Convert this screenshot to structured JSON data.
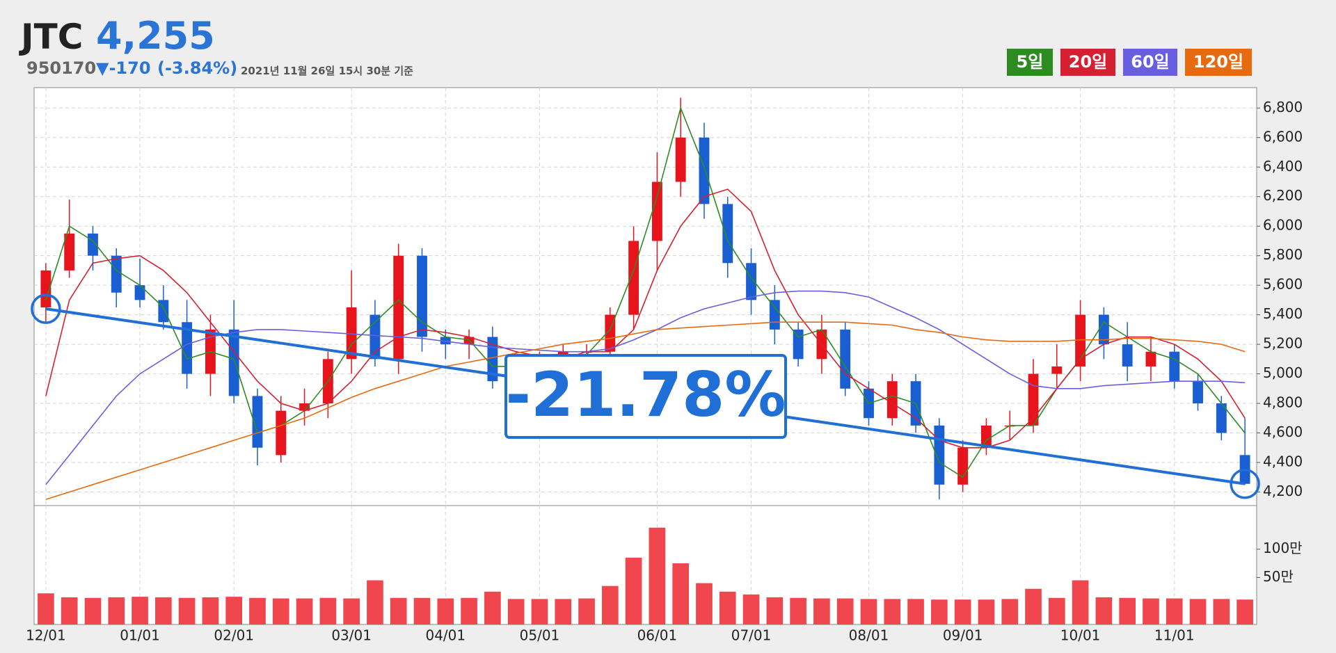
{
  "header": {
    "name": "JTC",
    "price": "4,255",
    "code": "950170",
    "change": "▼-170",
    "change_pct": "(-3.84%)",
    "timestamp": "2021년 11월 26일 15시 30분 기준"
  },
  "chart_data": {
    "type": "candlestick",
    "categories": [
      "12/01",
      null,
      null,
      null,
      "01/01",
      null,
      null,
      null,
      "02/01",
      null,
      null,
      null,
      null,
      "03/01",
      null,
      null,
      null,
      "04/01",
      null,
      null,
      null,
      "05/01",
      null,
      null,
      null,
      null,
      "06/01",
      null,
      null,
      null,
      "07/01",
      null,
      null,
      null,
      null,
      "08/01",
      null,
      null,
      null,
      "09/01",
      null,
      null,
      null,
      null,
      "10/01",
      null,
      null,
      null,
      "11/01",
      null,
      null,
      null
    ],
    "open": [
      5450,
      5700,
      5950,
      5800,
      5600,
      5500,
      5350,
      5000,
      5300,
      4850,
      4450,
      4750,
      4800,
      5100,
      5400,
      5100,
      5800,
      5250,
      5200,
      5250,
      4950,
      5100,
      5100,
      5150,
      5150,
      5400,
      5900,
      6300,
      6600,
      6150,
      5750,
      5500,
      5300,
      5100,
      5300,
      4900,
      4700,
      4950,
      4650,
      4250,
      4500,
      4650,
      4650,
      5000,
      5050,
      5400,
      5200,
      5050,
      5150,
      4950,
      4800,
      4450
    ],
    "high": [
      5750,
      6180,
      6000,
      5850,
      5780,
      5600,
      5500,
      5400,
      5500,
      4900,
      4850,
      4900,
      5150,
      5700,
      5500,
      5880,
      5850,
      5300,
      5300,
      5320,
      5150,
      5150,
      5200,
      5200,
      5450,
      6000,
      6500,
      6870,
      6700,
      6200,
      5850,
      5600,
      5350,
      5400,
      5350,
      4950,
      5000,
      5000,
      4700,
      4550,
      4700,
      4750,
      5100,
      5200,
      5500,
      5450,
      5350,
      5250,
      5200,
      5000,
      4850,
      4700
    ],
    "low": [
      5350,
      5650,
      5700,
      5450,
      5450,
      5300,
      4900,
      4850,
      4800,
      4380,
      4400,
      4650,
      4700,
      5000,
      5050,
      5000,
      5150,
      5100,
      5100,
      4900,
      4900,
      5000,
      5000,
      5050,
      5050,
      5300,
      5700,
      6200,
      6050,
      5650,
      5400,
      5200,
      5050,
      5000,
      4850,
      4650,
      4650,
      4600,
      4150,
      4200,
      4450,
      4550,
      4600,
      4900,
      4950,
      5100,
      4950,
      4950,
      4900,
      4750,
      4550,
      4250
    ],
    "close": [
      5700,
      5950,
      5800,
      5550,
      5500,
      5350,
      5000,
      5300,
      4850,
      4500,
      4750,
      4800,
      5100,
      5450,
      5100,
      5800,
      5250,
      5200,
      5250,
      4950,
      5100,
      5100,
      5150,
      5150,
      5400,
      5900,
      6300,
      6600,
      6150,
      5750,
      5500,
      5300,
      5100,
      5300,
      4900,
      4700,
      4950,
      4650,
      4250,
      4500,
      4650,
      4650,
      5000,
      5050,
      5400,
      5200,
      5050,
      5150,
      4950,
      4800,
      4600,
      4255
    ],
    "up_color": "#e8141c",
    "down_color": "#1a5fd1",
    "series": [
      {
        "name": "5일",
        "color": "#2e8b22",
        "values": [
          5500,
          6000,
          5900,
          5700,
          5600,
          5450,
          5100,
          5150,
          5100,
          4600,
          4650,
          4750,
          4950,
          5200,
          5350,
          5500,
          5350,
          5250,
          5230,
          5050,
          5050,
          5100,
          5120,
          5130,
          5300,
          5700,
          6200,
          6800,
          6400,
          5900,
          5650,
          5450,
          5250,
          5300,
          5050,
          4800,
          4850,
          4800,
          4400,
          4300,
          4550,
          4650,
          4650,
          4900,
          5100,
          5350,
          5250,
          5150,
          5100,
          5000,
          4800,
          4600
        ]
      },
      {
        "name": "20일",
        "color": "#d42030",
        "values": [
          4850,
          5500,
          5750,
          5780,
          5800,
          5700,
          5550,
          5350,
          5150,
          4950,
          4800,
          4750,
          4800,
          4950,
          5150,
          5250,
          5300,
          5280,
          5250,
          5200,
          5150,
          5120,
          5100,
          5150,
          5150,
          5300,
          5700,
          6000,
          6200,
          6250,
          6100,
          5700,
          5400,
          5200,
          5000,
          4900,
          4800,
          4700,
          4550,
          4500,
          4500,
          4550,
          4700,
          4900,
          5100,
          5200,
          5250,
          5250,
          5200,
          5100,
          4950,
          4700
        ]
      },
      {
        "name": "60일",
        "color": "#6a5ee0",
        "values": [
          4250,
          4450,
          4650,
          4850,
          5000,
          5100,
          5200,
          5250,
          5280,
          5300,
          5300,
          5290,
          5280,
          5270,
          5260,
          5250,
          5240,
          5220,
          5200,
          5180,
          5170,
          5160,
          5150,
          5150,
          5170,
          5230,
          5300,
          5380,
          5440,
          5480,
          5520,
          5550,
          5560,
          5560,
          5550,
          5520,
          5450,
          5380,
          5300,
          5200,
          5100,
          5000,
          4920,
          4900,
          4900,
          4920,
          4930,
          4940,
          4950,
          4950,
          4950,
          4940
        ]
      },
      {
        "name": "120일",
        "color": "#e86a10",
        "values": [
          4150,
          4200,
          4250,
          4300,
          4350,
          4400,
          4450,
          4500,
          4550,
          4600,
          4650,
          4700,
          4770,
          4840,
          4900,
          4950,
          5000,
          5050,
          5080,
          5110,
          5140,
          5170,
          5200,
          5220,
          5240,
          5270,
          5300,
          5310,
          5320,
          5330,
          5340,
          5350,
          5350,
          5350,
          5350,
          5340,
          5330,
          5300,
          5280,
          5250,
          5230,
          5220,
          5220,
          5220,
          5230,
          5230,
          5240,
          5240,
          5230,
          5220,
          5200,
          5150
        ]
      }
    ],
    "legend": "top-right",
    "ylim": [
      4108,
      6938
    ],
    "yticks": [
      {
        "value": 4200,
        "label": "4,200"
      },
      {
        "value": 4400,
        "label": "4,400"
      },
      {
        "value": 4600,
        "label": "4,600"
      },
      {
        "value": 4800,
        "label": "4,800"
      },
      {
        "value": 5000,
        "label": "5,000"
      },
      {
        "value": 5200,
        "label": "5,200"
      },
      {
        "value": 5400,
        "label": "5,400"
      },
      {
        "value": 5600,
        "label": "5,600"
      },
      {
        "value": 5800,
        "label": "5,800"
      },
      {
        "value": 6000,
        "label": "6,000"
      },
      {
        "value": 6200,
        "label": "6,200"
      },
      {
        "value": 6400,
        "label": "6,400"
      },
      {
        "value": 6600,
        "label": "6,600"
      },
      {
        "value": 6800,
        "label": "6,800"
      }
    ],
    "grid": true,
    "trend_line": {
      "start": 5440,
      "end": 4255,
      "color": "#1f6fd6"
    },
    "annotation": "-21.78%",
    "volume": {
      "color": "#f0474f",
      "ylim": [
        -33,
        177
      ],
      "yticks": [
        {
          "value": 50,
          "label": "50만"
        },
        {
          "value": 100,
          "label": "100만"
        }
      ],
      "values": [
        22,
        15,
        14,
        15,
        16,
        15,
        14,
        15,
        16,
        14,
        13,
        13,
        14,
        13,
        45,
        14,
        14,
        13,
        14,
        25,
        12,
        12,
        12,
        13,
        35,
        85,
        138,
        75,
        40,
        25,
        20,
        15,
        14,
        13,
        13,
        12,
        12,
        12,
        11,
        11,
        11,
        12,
        30,
        14,
        45,
        15,
        14,
        13,
        13,
        12,
        12,
        11
      ]
    }
  }
}
